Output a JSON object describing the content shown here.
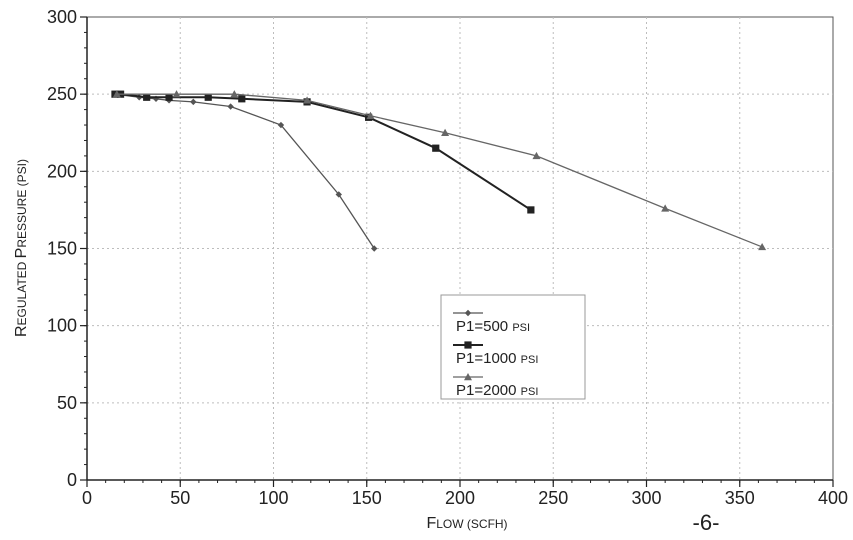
{
  "chart_data": {
    "type": "line",
    "xlabel": {
      "cap1": "F",
      "rest1": "LOW",
      "paren": " (SCFH)"
    },
    "ylabel": {
      "cap1": "R",
      "rest1": "EGULATED ",
      "cap2": "P",
      "rest2": "RESSURE",
      "paren": " (PSI)"
    },
    "xlim": [
      0,
      400
    ],
    "ylim": [
      0,
      300
    ],
    "x_ticks": [
      0,
      50,
      100,
      150,
      200,
      250,
      300,
      350,
      400
    ],
    "y_ticks": [
      0,
      50,
      100,
      150,
      200,
      250,
      300
    ],
    "x_tick_labels": [
      "0",
      "50",
      "100",
      "150",
      "200",
      "250",
      "300",
      "350",
      "400"
    ],
    "y_tick_labels": [
      "0",
      "50",
      "100",
      "150",
      "200",
      "250",
      "300"
    ],
    "grid": true,
    "legend_position": "center-right",
    "series": [
      {
        "name": "P1=500",
        "unit": "PSI",
        "marker": "diamond",
        "color": "#555555",
        "points": [
          [
            15,
            250
          ],
          [
            28,
            248
          ],
          [
            37,
            247
          ],
          [
            44,
            246
          ],
          [
            57,
            245
          ],
          [
            77,
            242
          ],
          [
            104,
            230
          ],
          [
            135,
            185
          ],
          [
            154,
            150
          ]
        ]
      },
      {
        "name": "P1=1000",
        "unit": "PSI",
        "marker": "square",
        "color": "#222222",
        "points": [
          [
            15,
            250
          ],
          [
            18,
            250
          ],
          [
            32,
            248
          ],
          [
            44,
            248
          ],
          [
            65,
            248
          ],
          [
            83,
            247
          ],
          [
            118,
            245
          ],
          [
            151,
            235
          ],
          [
            187,
            215
          ],
          [
            238,
            175
          ]
        ]
      },
      {
        "name": "P1=2000",
        "unit": "PSI",
        "marker": "triangle",
        "color": "#666666",
        "points": [
          [
            16,
            250
          ],
          [
            48,
            250
          ],
          [
            79,
            250
          ],
          [
            118,
            246
          ],
          [
            152,
            236
          ],
          [
            192,
            225
          ],
          [
            241,
            210
          ],
          [
            310,
            176
          ],
          [
            362,
            151
          ]
        ]
      }
    ]
  },
  "page_number": "-6-"
}
